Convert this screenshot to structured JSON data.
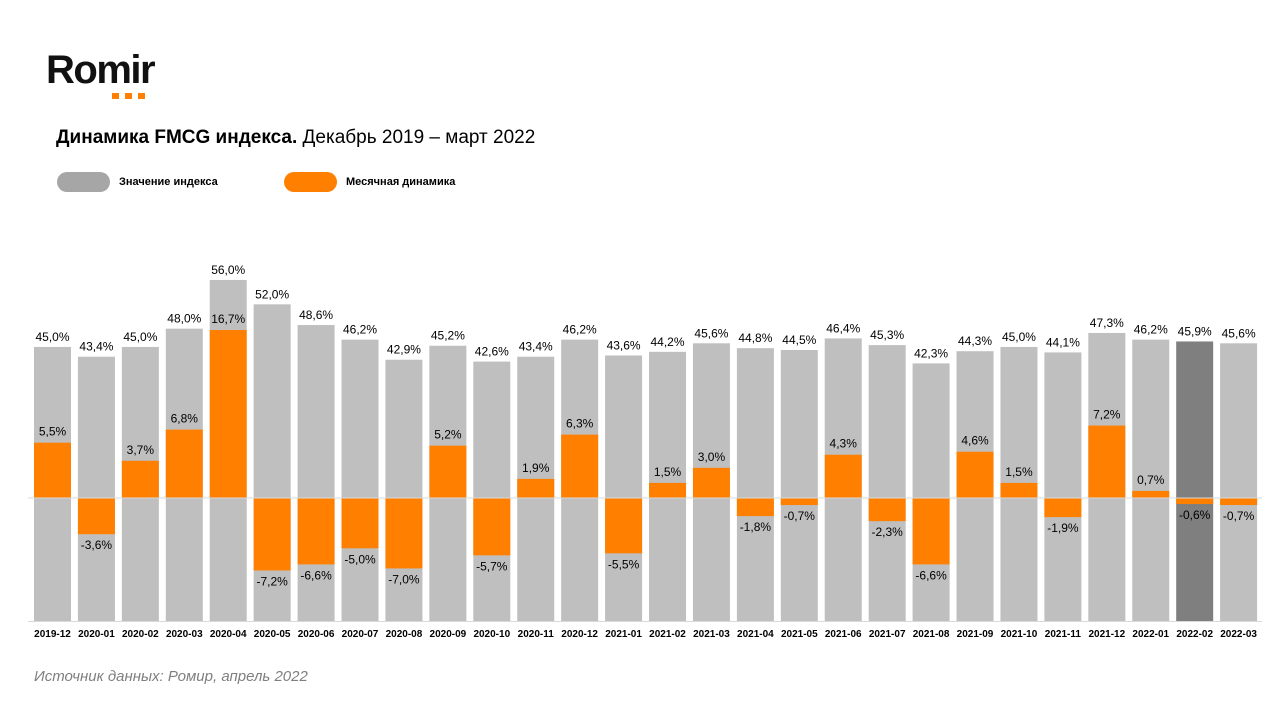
{
  "brand": {
    "logo_text": "Romir"
  },
  "title": {
    "bold": "Динамика FMCG индекса.",
    "regular": "Декабрь 2019 – март 2022"
  },
  "legend": [
    {
      "label": "Значение индекса",
      "color": "#a6a6a6"
    },
    {
      "label": "Месячная динамика",
      "color": "#ff8000"
    }
  ],
  "source": "Источник данных: Ромир, апрель 2022",
  "colors": {
    "index_bar": "#bfbfbf",
    "index_bar_highlight": "#7f7f7f",
    "change_bar": "#ff8000",
    "axis": "#d9d9d9"
  },
  "chart_data": {
    "type": "bar",
    "title": "Динамика FMCG индекса. Декабрь 2019 – март 2022",
    "xlabel": "",
    "ylabel": "",
    "grid": false,
    "legend_position": "top-left",
    "highlight_category": "2022-02",
    "categories": [
      "2019-12",
      "2020-01",
      "2020-02",
      "2020-03",
      "2020-04",
      "2020-05",
      "2020-06",
      "2020-07",
      "2020-08",
      "2020-09",
      "2020-10",
      "2020-11",
      "2020-12",
      "2021-01",
      "2021-02",
      "2021-03",
      "2021-04",
      "2021-05",
      "2021-06",
      "2021-07",
      "2021-08",
      "2021-09",
      "2021-10",
      "2021-11",
      "2021-12",
      "2022-01",
      "2022-02",
      "2022-03"
    ],
    "series": [
      {
        "name": "Значение индекса",
        "unit": "%",
        "ylim": [
          0,
          56
        ],
        "values": [
          45.0,
          43.4,
          45.0,
          48.0,
          56.0,
          52.0,
          48.6,
          46.2,
          42.9,
          45.2,
          42.6,
          43.4,
          46.2,
          43.6,
          44.2,
          45.6,
          44.8,
          44.5,
          46.4,
          45.3,
          42.3,
          44.3,
          45.0,
          44.1,
          47.3,
          46.2,
          45.9,
          45.6
        ],
        "labels": [
          "45,0%",
          "43,4%",
          "45,0%",
          "48,0%",
          "56,0%",
          "52,0%",
          "48,6%",
          "46,2%",
          "42,9%",
          "45,2%",
          "42,6%",
          "43,4%",
          "46,2%",
          "43,6%",
          "44,2%",
          "45,6%",
          "44,8%",
          "44,5%",
          "46,4%",
          "45,3%",
          "42,3%",
          "44,3%",
          "45,0%",
          "44,1%",
          "47,3%",
          "46,2%",
          "45,9%",
          "45,6%"
        ]
      },
      {
        "name": "Месячная динамика",
        "unit": "%",
        "ylim": [
          -12,
          17
        ],
        "values": [
          5.5,
          -3.6,
          3.7,
          6.8,
          16.7,
          -7.2,
          -6.6,
          -5.0,
          -7.0,
          5.2,
          -5.7,
          1.9,
          6.3,
          -5.5,
          1.5,
          3.0,
          -1.8,
          -0.7,
          4.3,
          -2.3,
          -6.6,
          4.6,
          1.5,
          -1.9,
          7.2,
          0.7,
          -0.6,
          -0.7
        ],
        "labels": [
          "5,5%",
          "-3,6%",
          "3,7%",
          "6,8%",
          "16,7%",
          "-7,2%",
          "-6,6%",
          "-5,0%",
          "-7,0%",
          "5,2%",
          "-5,7%",
          "1,9%",
          "6,3%",
          "-5,5%",
          "1,5%",
          "3,0%",
          "-1,8%",
          "-0,7%",
          "4,3%",
          "-2,3%",
          "-6,6%",
          "4,6%",
          "1,5%",
          "-1,9%",
          "7,2%",
          "0,7%",
          "-0,6%",
          "-0,7%"
        ]
      }
    ]
  }
}
